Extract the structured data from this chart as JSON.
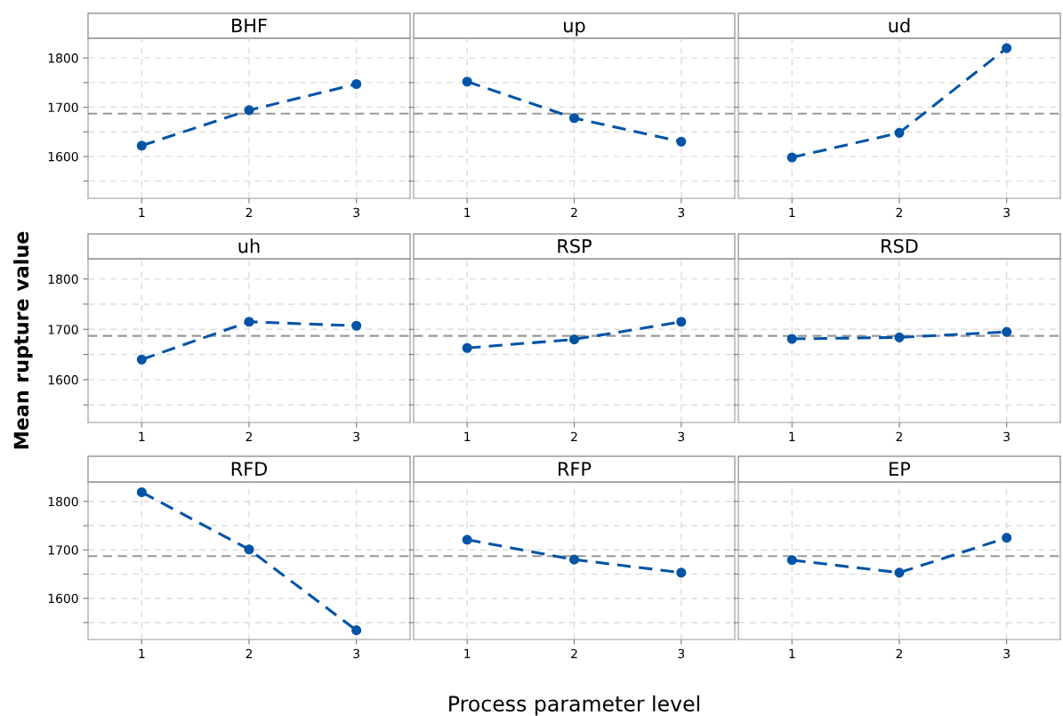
{
  "chart_data": [
    {
      "type": "line",
      "title": "BHF",
      "x": [
        1,
        2,
        3
      ],
      "series": [
        {
          "color": "#0054a6",
          "values": [
            1622,
            1694,
            1747
          ]
        }
      ],
      "xlim": [
        0.5,
        3.5
      ],
      "xticks": [
        1,
        2,
        3
      ],
      "ylim": [
        1515,
        1840
      ],
      "yticks": [
        {
          "value": 1550,
          "label": null
        },
        1600,
        {
          "value": 1650,
          "label": null
        },
        1700,
        {
          "value": 1750,
          "label": null
        },
        1800
      ],
      "ref_lines": [
        {
          "axis": "y",
          "value": 1687,
          "color": "#999999",
          "line_style": "dashed"
        }
      ],
      "grid": true,
      "marker": "circle",
      "line_style": "dashed"
    },
    {
      "type": "line",
      "title": "up",
      "x": [
        1,
        2,
        3
      ],
      "series": [
        {
          "color": "#0054a6",
          "values": [
            1752,
            1678,
            1630
          ]
        }
      ],
      "xlim": [
        0.5,
        3.5
      ],
      "xticks": [
        1,
        2,
        3
      ],
      "ylim": [
        1515,
        1840
      ],
      "yticks": [
        {
          "value": 1550,
          "label": null
        },
        1600,
        {
          "value": 1650,
          "label": null
        },
        1700,
        {
          "value": 1750,
          "label": null
        },
        1800
      ],
      "ref_lines": [
        {
          "axis": "y",
          "value": 1687,
          "color": "#999999",
          "line_style": "dashed"
        }
      ],
      "grid": true,
      "marker": "circle",
      "line_style": "dashed",
      "tick_labels": "x"
    },
    {
      "type": "line",
      "title": "ud",
      "x": [
        1,
        2,
        3
      ],
      "series": [
        {
          "color": "#0054a6",
          "values": [
            1598,
            1648,
            1820
          ]
        }
      ],
      "xlim": [
        0.5,
        3.5
      ],
      "xticks": [
        1,
        2,
        3
      ],
      "ylim": [
        1515,
        1840
      ],
      "yticks": [
        {
          "value": 1550,
          "label": null
        },
        1600,
        {
          "value": 1650,
          "label": null
        },
        1700,
        {
          "value": 1750,
          "label": null
        },
        1800
      ],
      "ref_lines": [
        {
          "axis": "y",
          "value": 1687,
          "color": "#999999",
          "line_style": "dashed"
        }
      ],
      "grid": true,
      "marker": "circle",
      "line_style": "dashed",
      "tick_labels": "x"
    },
    {
      "type": "line",
      "title": "uh",
      "ylabel": "Mean rupture value",
      "x": [
        1,
        2,
        3
      ],
      "series": [
        {
          "color": "#0054a6",
          "values": [
            1640,
            1715,
            1707
          ]
        }
      ],
      "xlim": [
        0.5,
        3.5
      ],
      "xticks": [
        1,
        2,
        3
      ],
      "ylim": [
        1515,
        1840
      ],
      "yticks": [
        {
          "value": 1550,
          "label": null
        },
        1600,
        {
          "value": 1650,
          "label": null
        },
        1700,
        {
          "value": 1750,
          "label": null
        },
        1800
      ],
      "ref_lines": [
        {
          "axis": "y",
          "value": 1687,
          "color": "#999999",
          "line_style": "dashed"
        }
      ],
      "grid": true,
      "marker": "circle",
      "line_style": "dashed"
    },
    {
      "type": "line",
      "title": "RSP",
      "x": [
        1,
        2,
        3
      ],
      "series": [
        {
          "color": "#0054a6",
          "values": [
            1663,
            1680,
            1715
          ]
        }
      ],
      "xlim": [
        0.5,
        3.5
      ],
      "xticks": [
        1,
        2,
        3
      ],
      "ylim": [
        1515,
        1840
      ],
      "yticks": [
        {
          "value": 1550,
          "label": null
        },
        1600,
        {
          "value": 1650,
          "label": null
        },
        1700,
        {
          "value": 1750,
          "label": null
        },
        1800
      ],
      "ref_lines": [
        {
          "axis": "y",
          "value": 1687,
          "color": "#999999",
          "line_style": "dashed"
        }
      ],
      "grid": true,
      "marker": "circle",
      "line_style": "dashed",
      "tick_labels": "x"
    },
    {
      "type": "line",
      "title": "RSD",
      "x": [
        1,
        2,
        3
      ],
      "series": [
        {
          "color": "#0054a6",
          "values": [
            1681,
            1684,
            1695
          ]
        }
      ],
      "xlim": [
        0.5,
        3.5
      ],
      "xticks": [
        1,
        2,
        3
      ],
      "ylim": [
        1515,
        1840
      ],
      "yticks": [
        {
          "value": 1550,
          "label": null
        },
        1600,
        {
          "value": 1650,
          "label": null
        },
        1700,
        {
          "value": 1750,
          "label": null
        },
        1800
      ],
      "ref_lines": [
        {
          "axis": "y",
          "value": 1687,
          "color": "#999999",
          "line_style": "dashed"
        }
      ],
      "grid": true,
      "marker": "circle",
      "line_style": "dashed",
      "tick_labels": "x"
    },
    {
      "type": "line",
      "title": "RFD",
      "x": [
        1,
        2,
        3
      ],
      "series": [
        {
          "color": "#0054a6",
          "values": [
            1819,
            1701,
            1534
          ]
        }
      ],
      "xlim": [
        0.5,
        3.5
      ],
      "xticks": [
        1,
        2,
        3
      ],
      "ylim": [
        1515,
        1840
      ],
      "yticks": [
        {
          "value": 1550,
          "label": null
        },
        1600,
        {
          "value": 1650,
          "label": null
        },
        1700,
        {
          "value": 1750,
          "label": null
        },
        1800
      ],
      "ref_lines": [
        {
          "axis": "y",
          "value": 1687,
          "color": "#999999",
          "line_style": "dashed"
        }
      ],
      "grid": true,
      "marker": "circle",
      "line_style": "dashed"
    },
    {
      "type": "line",
      "title": "RFP",
      "xlabel": "Process parameter level",
      "x": [
        1,
        2,
        3
      ],
      "series": [
        {
          "color": "#0054a6",
          "values": [
            1721,
            1680,
            1653
          ]
        }
      ],
      "xlim": [
        0.5,
        3.5
      ],
      "xticks": [
        1,
        2,
        3
      ],
      "ylim": [
        1515,
        1840
      ],
      "yticks": [
        {
          "value": 1550,
          "label": null
        },
        1600,
        {
          "value": 1650,
          "label": null
        },
        1700,
        {
          "value": 1750,
          "label": null
        },
        1800
      ],
      "ref_lines": [
        {
          "axis": "y",
          "value": 1687,
          "color": "#999999",
          "line_style": "dashed"
        }
      ],
      "grid": true,
      "marker": "circle",
      "line_style": "dashed",
      "tick_labels": "x"
    },
    {
      "type": "line",
      "title": "EP",
      "x": [
        1,
        2,
        3
      ],
      "series": [
        {
          "color": "#0054a6",
          "values": [
            1679,
            1653,
            1725
          ]
        }
      ],
      "xlim": [
        0.5,
        3.5
      ],
      "xticks": [
        1,
        2,
        3
      ],
      "ylim": [
        1515,
        1840
      ],
      "yticks": [
        {
          "value": 1550,
          "label": null
        },
        1600,
        {
          "value": 1650,
          "label": null
        },
        1700,
        {
          "value": 1750,
          "label": null
        },
        1800
      ],
      "ref_lines": [
        {
          "axis": "y",
          "value": 1687,
          "color": "#999999",
          "line_style": "dashed"
        }
      ],
      "grid": true,
      "marker": "circle",
      "line_style": "dashed",
      "tick_labels": "x"
    }
  ]
}
